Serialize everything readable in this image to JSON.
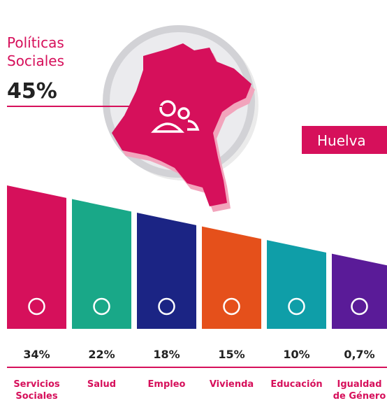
{
  "headline": {
    "label": [
      "Políticas",
      "Sociales"
    ],
    "value": "45%"
  },
  "region": "Huelva",
  "items": [
    {
      "label": [
        "Servicios",
        "Sociales"
      ],
      "value": "34%",
      "color": "#d6105b"
    },
    {
      "label": [
        "Salud"
      ],
      "value": "22%",
      "color": "#19a888"
    },
    {
      "label": [
        "Empleo"
      ],
      "value": "18%",
      "color": "#1b2484"
    },
    {
      "label": [
        "Vivienda"
      ],
      "value": "15%",
      "color": "#e5501b"
    },
    {
      "label": [
        "Educación"
      ],
      "value": "10%",
      "color": "#0f9ea8"
    },
    {
      "label": [
        "Igualdad",
        "de Género"
      ],
      "value": "0,7%",
      "color": "#5a1b98"
    }
  ]
}
